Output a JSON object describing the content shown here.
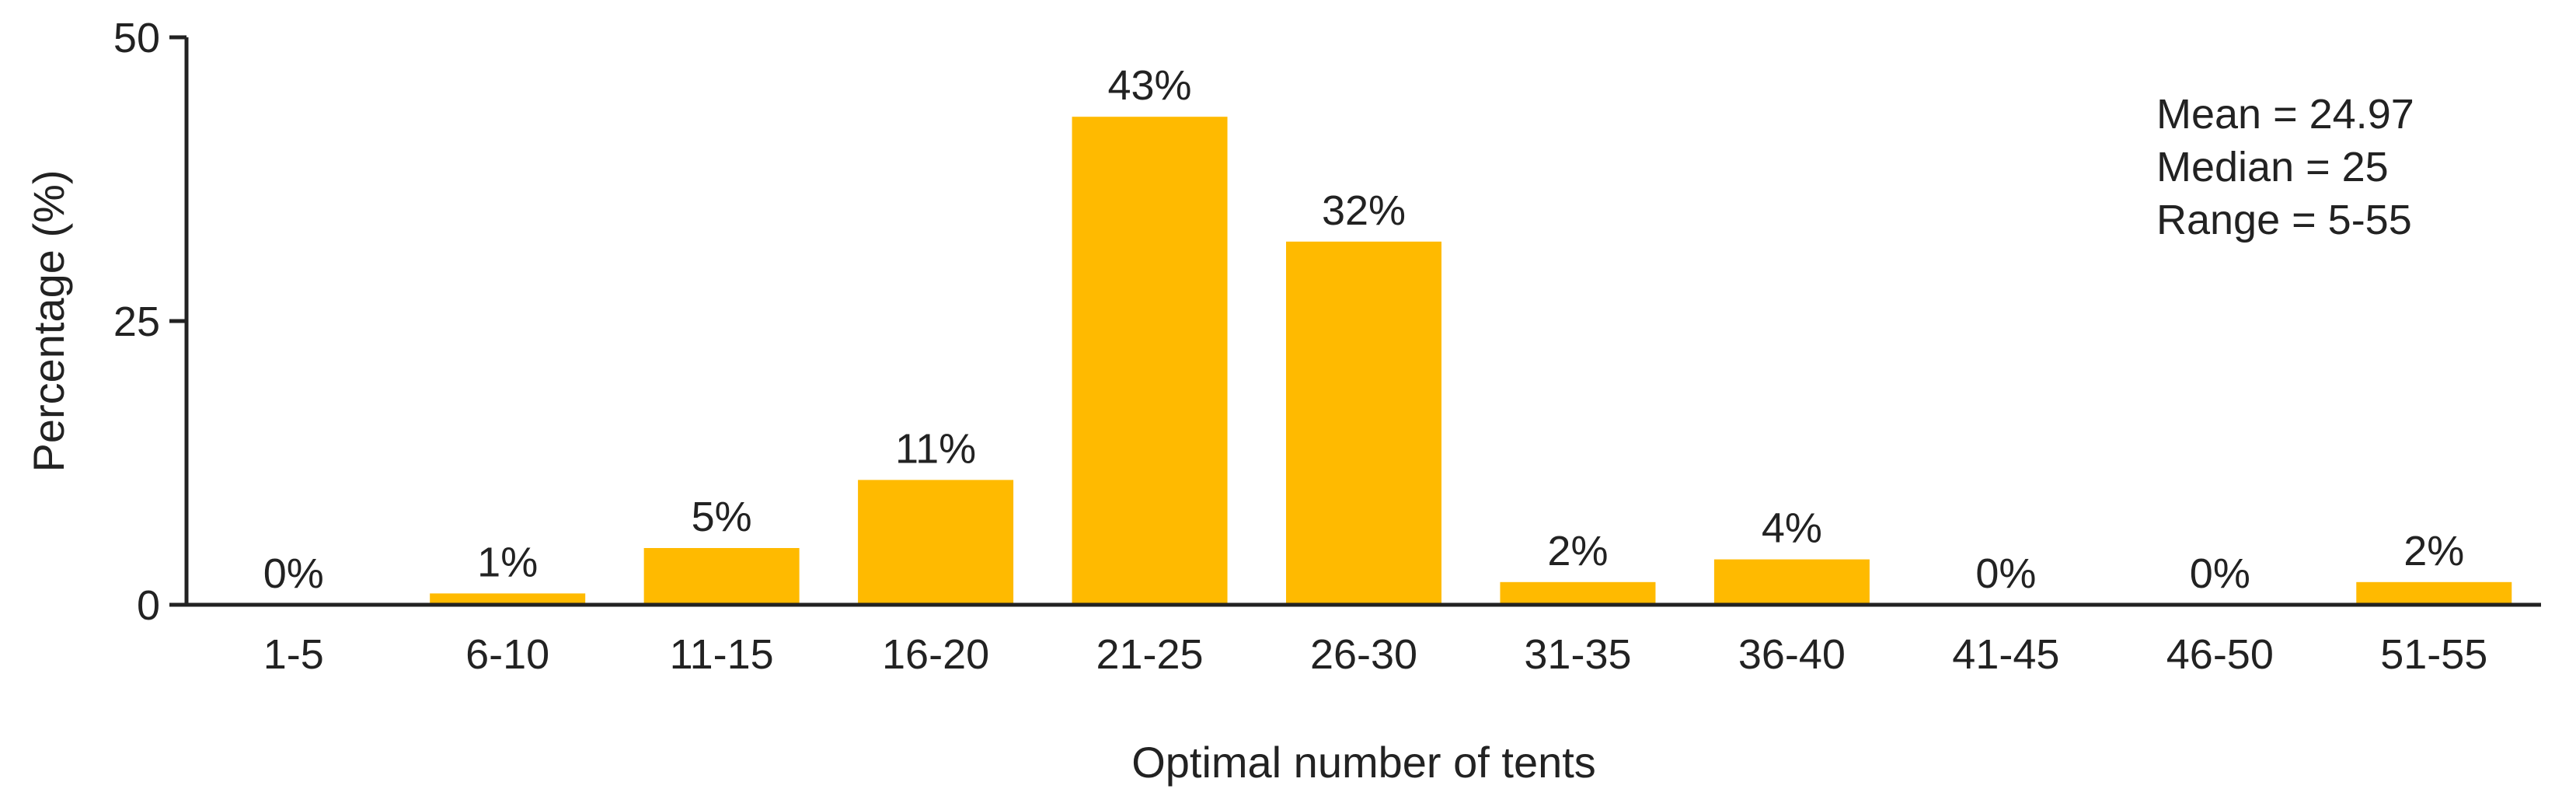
{
  "chart_data": {
    "type": "bar",
    "title": "",
    "xlabel": "Optimal number of tents",
    "ylabel": "Percentage (%)",
    "ylim": [
      0,
      50
    ],
    "yticks": [
      "0",
      "25",
      "50"
    ],
    "categories": [
      "1-5",
      "6-10",
      "11-15",
      "16-20",
      "21-25",
      "26-30",
      "31-35",
      "36-40",
      "41-45",
      "46-50",
      "51-55"
    ],
    "values": [
      0,
      1,
      5,
      11,
      43,
      32,
      2,
      4,
      0,
      0,
      2
    ],
    "data_labels": [
      "0%",
      "1%",
      "5%",
      "11%",
      "43%",
      "32%",
      "2%",
      "4%",
      "0%",
      "0%",
      "2%"
    ],
    "annotations": [
      "Mean = 24.97",
      "Median = 25",
      "Range = 5-55"
    ],
    "bar_color": "#FFBA00",
    "grid": false,
    "legend": "none"
  }
}
